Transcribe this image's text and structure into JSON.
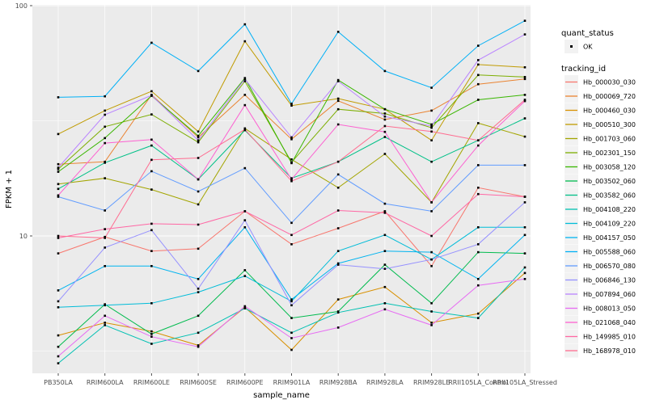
{
  "window": {
    "background": "#ffffff"
  },
  "axes": {
    "x_title": "sample_name",
    "y_title": "FPKM + 1",
    "y_ticks": [
      {
        "label": "10",
        "value": 10
      },
      {
        "label": "100",
        "value": 100
      }
    ],
    "y_minor": [
      3.162,
      31.62
    ],
    "tick_color": "#4d4d4d"
  },
  "legend": {
    "quant_title": "quant_status",
    "quant_items": [
      {
        "label": "OK",
        "symbol": "point"
      }
    ],
    "tracking_title": "tracking_id",
    "key_bg": "#f2f2f2"
  },
  "panel": {
    "bg": "#ebebeb",
    "grid": "#ffffff",
    "point_color": "#000000"
  },
  "chart_data": {
    "type": "line",
    "title": "",
    "xlabel": "sample_name",
    "ylabel": "FPKM + 1",
    "y_scale": "log10",
    "ylim": [
      2.5,
      101
    ],
    "grid": true,
    "legend_position": "right",
    "categories": [
      "PB350LA",
      "RRIM600LA",
      "RRIM600LE",
      "RRIM600SE",
      "RRIM600PE",
      "RRIM901LA",
      "RRIM928BA",
      "RRIM928LA",
      "RRIM928LE",
      "RRII105LA_Control",
      "RRII105LA_Stressed"
    ],
    "series": [
      {
        "name": "Hb_000030_030",
        "color": "#F8766D",
        "values": [
          8.4,
          9.9,
          8.6,
          8.8,
          12.8,
          9.2,
          10.8,
          12.8,
          7.4,
          16.2,
          14.8
        ]
      },
      {
        "name": "Hb_000069_720",
        "color": "#EA8331",
        "values": [
          20.5,
          21.0,
          41.0,
          26.8,
          41.0,
          26.3,
          38.6,
          32.0,
          35.0,
          45.6,
          48.0
        ]
      },
      {
        "name": "Hb_000460_030",
        "color": "#D89000",
        "values": [
          3.7,
          4.2,
          3.85,
          3.35,
          4.9,
          3.2,
          5.3,
          6.0,
          4.2,
          4.6,
          6.9
        ]
      },
      {
        "name": "Hb_000510_300",
        "color": "#C09B00",
        "values": [
          27.7,
          35.0,
          42.5,
          28.4,
          70.0,
          36.8,
          39.5,
          35.5,
          26.0,
          55.5,
          54.0
        ]
      },
      {
        "name": "Hb_001703_060",
        "color": "#A3A500",
        "values": [
          16.8,
          17.8,
          15.9,
          13.7,
          29.3,
          21.5,
          16.2,
          22.7,
          14.0,
          30.9,
          27.0
        ]
      },
      {
        "name": "Hb_002301_150",
        "color": "#7CAE00",
        "values": [
          19.5,
          29.8,
          33.7,
          25.5,
          47.0,
          20.9,
          35.5,
          34.0,
          29.5,
          50.0,
          49.0
        ]
      },
      {
        "name": "Hb_003058_120",
        "color": "#39B600",
        "values": [
          19.0,
          26.6,
          40.6,
          27.2,
          48.5,
          20.7,
          47.5,
          35.5,
          30.5,
          39.0,
          41.0
        ]
      },
      {
        "name": "Hb_003502_060",
        "color": "#00BB4E",
        "values": [
          3.3,
          5.05,
          3.75,
          4.5,
          7.1,
          4.4,
          4.7,
          7.5,
          5.1,
          8.5,
          8.4
        ]
      },
      {
        "name": "Hb_003582_060",
        "color": "#00C087",
        "values": [
          16.0,
          20.8,
          24.7,
          17.6,
          28.8,
          17.8,
          21.0,
          26.9,
          21.0,
          26.0,
          32.4
        ]
      },
      {
        "name": "Hb_004108_220",
        "color": "#00C0B2",
        "values": [
          2.8,
          4.1,
          3.4,
          3.8,
          4.85,
          3.8,
          4.65,
          5.1,
          4.7,
          4.4,
          7.3
        ]
      },
      {
        "name": "Hb_004109_220",
        "color": "#00BCD8",
        "values": [
          4.9,
          5.0,
          5.1,
          5.7,
          6.7,
          5.2,
          8.6,
          10.1,
          7.9,
          10.9,
          10.9
        ]
      },
      {
        "name": "Hb_004157_050",
        "color": "#00B4F0",
        "values": [
          5.8,
          7.4,
          7.4,
          6.5,
          10.9,
          5.3,
          7.6,
          8.6,
          8.5,
          6.5,
          10.1
        ]
      },
      {
        "name": "Hb_005588_060",
        "color": "#00B0F6",
        "values": [
          40.0,
          40.4,
          69.0,
          52.0,
          83.0,
          37.5,
          77.0,
          52.0,
          44.0,
          67.0,
          86.0
        ]
      },
      {
        "name": "Hb_006570_080",
        "color": "#619CFF",
        "values": [
          14.8,
          12.9,
          19.1,
          15.6,
          19.7,
          11.4,
          18.5,
          13.8,
          12.8,
          20.3,
          20.3
        ]
      },
      {
        "name": "Hb_006846_130",
        "color": "#9590FF",
        "values": [
          5.2,
          8.9,
          10.6,
          5.9,
          11.7,
          5.0,
          7.5,
          7.2,
          7.9,
          9.2,
          14.0
        ]
      },
      {
        "name": "Hb_007894_060",
        "color": "#B983FF",
        "values": [
          19.8,
          33.6,
          40.8,
          26.0,
          48.0,
          26.8,
          47.0,
          33.0,
          30.0,
          58.0,
          75.0
        ]
      },
      {
        "name": "Hb_008013_050",
        "color": "#E76BF3",
        "values": [
          3.0,
          4.5,
          3.65,
          3.3,
          4.95,
          3.6,
          4.0,
          4.8,
          4.1,
          6.1,
          6.5
        ]
      },
      {
        "name": "Hb_021068_040",
        "color": "#FD61D1",
        "values": [
          15.0,
          25.3,
          26.2,
          17.6,
          37.0,
          17.6,
          30.5,
          28.3,
          14.0,
          24.7,
          38.5
        ]
      },
      {
        "name": "Hb_149985_010",
        "color": "#FF67A4",
        "values": [
          9.8,
          10.7,
          11.3,
          11.2,
          12.8,
          10.1,
          12.9,
          12.6,
          10.0,
          15.2,
          14.8
        ]
      },
      {
        "name": "Hb_168978_010",
        "color": "#FF6C90",
        "values": [
          10.0,
          9.8,
          21.4,
          21.8,
          29.0,
          17.3,
          21.0,
          30.0,
          28.4,
          26.0,
          39.0
        ]
      }
    ]
  }
}
